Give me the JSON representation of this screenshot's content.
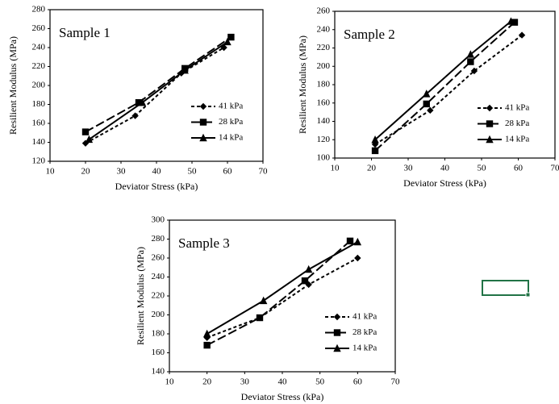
{
  "chart_data": [
    {
      "type": "line",
      "title": "Sample 1",
      "x_label": "Deviator Stress (kPa)",
      "y_label": "Resilient Modulus (MPa)",
      "xlim": [
        10,
        70
      ],
      "xticks": [
        10,
        20,
        30,
        40,
        50,
        60,
        70
      ],
      "ylim": [
        120,
        280
      ],
      "yticks": [
        120,
        140,
        160,
        180,
        200,
        220,
        240,
        260,
        280
      ],
      "legend": "lower right",
      "series": [
        {
          "name": "41 kPa",
          "color": "#000000",
          "dash": "4,3",
          "marker": "diamond",
          "x": [
            20,
            34,
            47,
            59
          ],
          "values": [
            139,
            168,
            213,
            240
          ]
        },
        {
          "name": "28 kPa",
          "color": "#000000",
          "dash": "11,4",
          "marker": "square",
          "x": [
            20,
            35,
            48,
            61
          ],
          "values": [
            151,
            182,
            218,
            251
          ]
        },
        {
          "name": "14 kPa",
          "color": "#000000",
          "dash": "none",
          "marker": "triangle",
          "x": [
            21,
            36,
            48,
            60
          ],
          "values": [
            143,
            182,
            216,
            246
          ]
        }
      ]
    },
    {
      "type": "line",
      "title": "Sample 2",
      "x_label": "Deviator Stress (kPa)",
      "y_label": "Resilient Modulus (MPa)",
      "xlim": [
        10,
        70
      ],
      "xticks": [
        10,
        20,
        30,
        40,
        50,
        60,
        70
      ],
      "ylim": [
        100,
        260
      ],
      "yticks": [
        100,
        120,
        140,
        160,
        180,
        200,
        220,
        240,
        260
      ],
      "legend": "lower right",
      "series": [
        {
          "name": "41 kPa",
          "color": "#000000",
          "dash": "4,3",
          "marker": "diamond",
          "x": [
            21,
            36,
            48,
            61
          ],
          "values": [
            115,
            152,
            195,
            234
          ]
        },
        {
          "name": "28 kPa",
          "color": "#000000",
          "dash": "11,4",
          "marker": "square",
          "x": [
            21,
            35,
            47,
            59
          ],
          "values": [
            108,
            159,
            205,
            248
          ]
        },
        {
          "name": "14 kPa",
          "color": "#000000",
          "dash": "none",
          "marker": "triangle",
          "x": [
            21,
            35,
            47,
            58
          ],
          "values": [
            120,
            170,
            213,
            249
          ]
        }
      ]
    },
    {
      "type": "line",
      "title": "Sample 3",
      "x_label": "Deviator Stress (kPa)",
      "y_label": "Resilient Modulus (MPa)",
      "xlim": [
        10,
        70
      ],
      "xticks": [
        10,
        20,
        30,
        40,
        50,
        60,
        70
      ],
      "ylim": [
        140,
        300
      ],
      "yticks": [
        140,
        160,
        180,
        200,
        220,
        240,
        260,
        280,
        300
      ],
      "legend": "lower right",
      "series": [
        {
          "name": "41 kPa",
          "color": "#000000",
          "dash": "4,3",
          "marker": "diamond",
          "x": [
            20,
            34,
            47,
            60
          ],
          "values": [
            176,
            197,
            232,
            260
          ]
        },
        {
          "name": "28 kPa",
          "color": "#000000",
          "dash": "11,4",
          "marker": "square",
          "x": [
            20,
            34,
            46,
            58
          ],
          "values": [
            168,
            197,
            236,
            278
          ]
        },
        {
          "name": "14 kPa",
          "color": "#000000",
          "dash": "none",
          "marker": "triangle",
          "x": [
            20,
            35,
            47,
            60
          ],
          "values": [
            180,
            215,
            248,
            277
          ]
        }
      ]
    }
  ]
}
